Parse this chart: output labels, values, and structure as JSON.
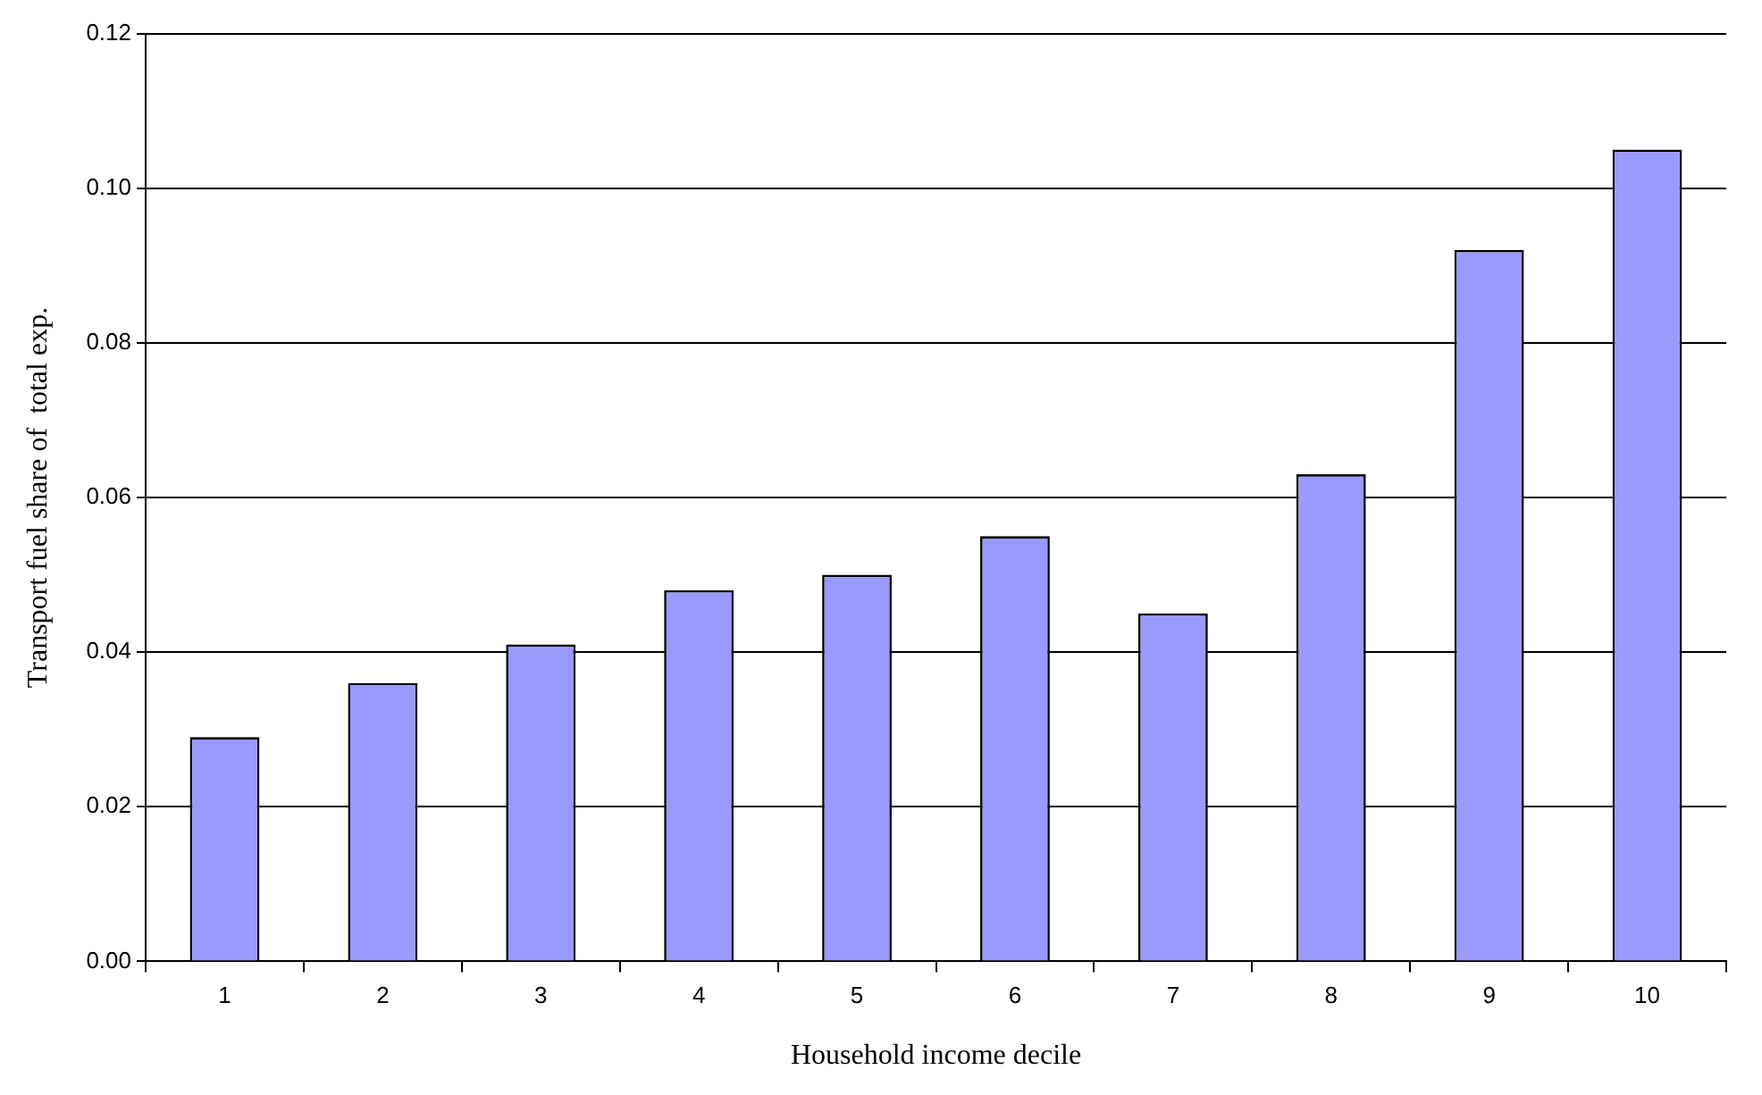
{
  "chart_data": {
    "type": "bar",
    "xlabel": "Household income decile",
    "ylabel": "Transport fuel share of  total exp.",
    "categories": [
      "1",
      "2",
      "3",
      "4",
      "5",
      "6",
      "7",
      "8",
      "9",
      "10"
    ],
    "values": [
      0.029,
      0.036,
      0.041,
      0.048,
      0.05,
      0.055,
      0.045,
      0.063,
      0.092,
      0.105
    ],
    "color": "#9999ff",
    "ylim": [
      0,
      0.12
    ],
    "yticks": [
      {
        "value": 0,
        "label": "0.00"
      },
      {
        "value": 0.02,
        "label": "0.02"
      },
      {
        "value": 0.04,
        "label": "0.04"
      },
      {
        "value": 0.06,
        "label": "0.06"
      },
      {
        "value": 0.08,
        "label": "0.08"
      },
      {
        "value": 0.1,
        "label": "0.10"
      },
      {
        "value": 0.12,
        "label": "0.12"
      }
    ],
    "grid": "y",
    "legend": false
  }
}
